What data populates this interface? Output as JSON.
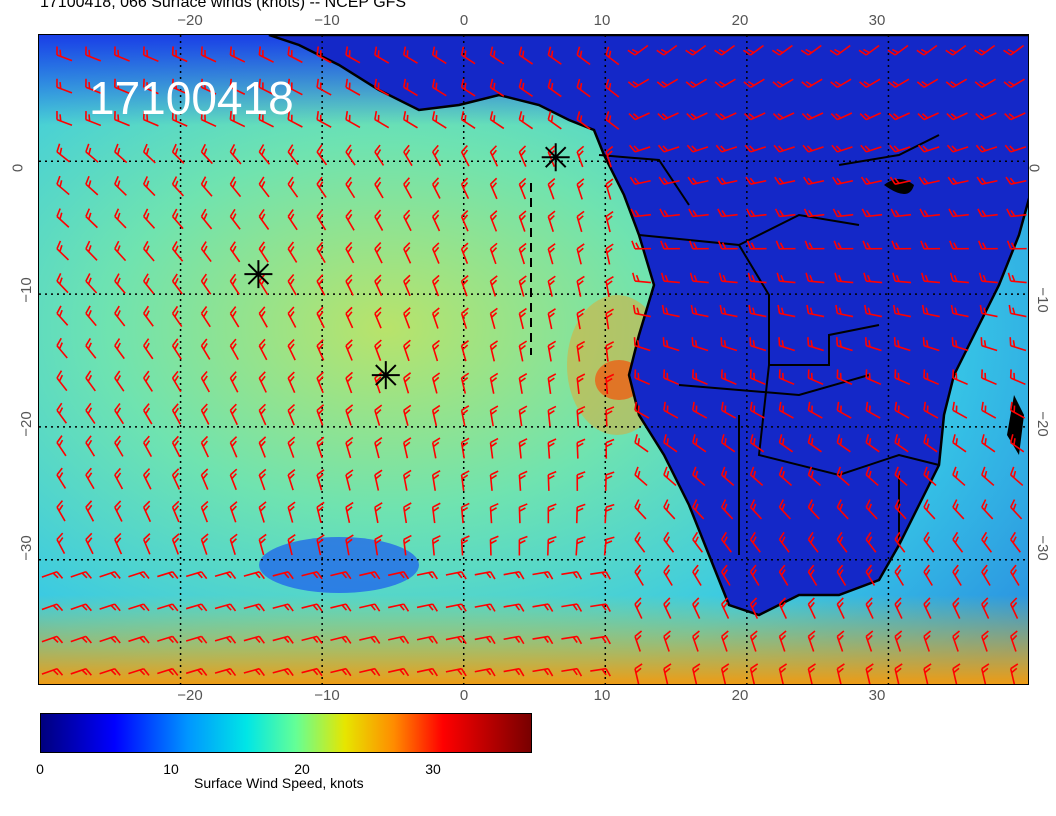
{
  "title": "17100418, 066 Surface winds (knots) -- NCEP GFS",
  "stamp": "17100418",
  "lon_ticks": [
    "−20",
    "−10",
    "0",
    "10",
    "20",
    "30"
  ],
  "lat_ticks": [
    "0",
    "−10",
    "−20",
    "−30"
  ],
  "colorbar": {
    "label": "Surface Wind Speed, knots",
    "ticks": [
      "0",
      "10",
      "20",
      "30"
    ],
    "colors": [
      "#00007e",
      "#0000ff",
      "#0096ff",
      "#00e6e6",
      "#64ff96",
      "#e6e600",
      "#ff8c00",
      "#ff0000",
      "#780000"
    ]
  },
  "map": {
    "lon_range": [
      -30,
      40
    ],
    "lat_range": [
      -39.5,
      9.5
    ],
    "barb_color": "#ff0000",
    "ocean_color": "#3cd2e6",
    "land_color": "#1428c8",
    "markers": [
      {
        "name": "asterisk",
        "lon": 6.5,
        "lat": 0.3
      },
      {
        "name": "asterisk",
        "lon": -14.5,
        "lat": -8.5
      },
      {
        "name": "asterisk",
        "lon": -5.5,
        "lat": -16.1
      }
    ]
  }
}
